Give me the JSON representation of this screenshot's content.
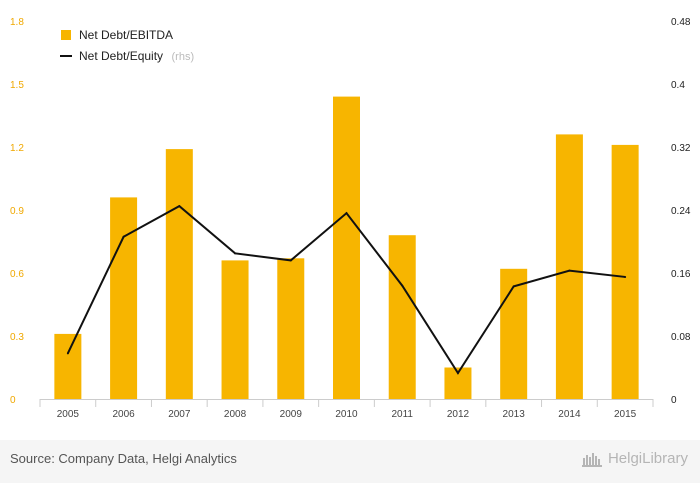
{
  "chart_data": {
    "type": "bar",
    "categories": [
      "2005",
      "2006",
      "2007",
      "2008",
      "2009",
      "2010",
      "2011",
      "2012",
      "2013",
      "2014",
      "2015"
    ],
    "series": [
      {
        "name": "Net Debt/EBITDA",
        "type": "bar",
        "axis": "left",
        "color": "#f7b500",
        "values": [
          0.31,
          0.96,
          1.19,
          0.66,
          0.67,
          1.44,
          0.78,
          0.15,
          0.62,
          1.26,
          1.21
        ]
      },
      {
        "name": "Net Debt/Equity",
        "type": "line",
        "axis": "right",
        "color": "#111111",
        "values": [
          0.058,
          0.206,
          0.245,
          0.185,
          0.176,
          0.236,
          0.144,
          0.033,
          0.143,
          0.163,
          0.155
        ]
      }
    ],
    "legend": [
      {
        "label": "Net Debt/EBITDA",
        "note": ""
      },
      {
        "label": "Net Debt/Equity",
        "note": "(rhs)"
      }
    ],
    "legend_position": "top-left",
    "y_left": {
      "min": 0,
      "max": 1.8,
      "ticks": [
        "0",
        "0.3",
        "0.6",
        "0.9",
        "1.2",
        "1.5",
        "1.8"
      ]
    },
    "y_right": {
      "min": 0,
      "max": 0.48,
      "ticks": [
        "0",
        "0.08",
        "0.16",
        "0.24",
        "0.32",
        "0.4",
        "0.48"
      ]
    },
    "grid": false
  },
  "footer": {
    "source": "Source: Company Data, Helgi Analytics",
    "brand": "HelgiLibrary"
  }
}
